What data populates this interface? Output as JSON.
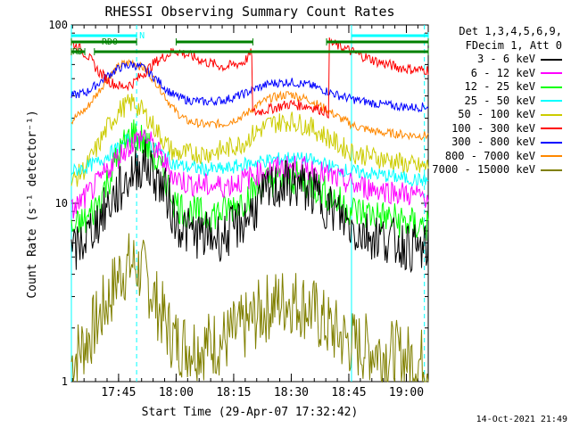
{
  "chart_data": {
    "type": "line",
    "title": "RHESSI Observing Summary Count Rates",
    "xlabel": "Start Time (29-Apr-07 17:32:42)",
    "ylabel": "Count Rate (s⁻¹ detector⁻¹)",
    "yscale": "log",
    "ylim": [
      1,
      100
    ],
    "xlim_minutes": [
      0,
      93
    ],
    "y_tick_labels": [
      "1",
      "10",
      "100"
    ],
    "x_tick_labels": [
      "17:45",
      "18:00",
      "18:15",
      "18:30",
      "18:45",
      "19:00"
    ],
    "x_tick_minutes": [
      12.3,
      27.3,
      42.3,
      57.3,
      72.3,
      87.3
    ],
    "legend_header": [
      "Det 1,3,4,5,6,9,",
      "FDecim 1, Att 0"
    ],
    "series": [
      {
        "name": "3 - 6 keV",
        "color": "#000000",
        "x": [
          0,
          4,
          7,
          10,
          13,
          16,
          19,
          22,
          25,
          27,
          30,
          35,
          40,
          45,
          48,
          52,
          57,
          62,
          66,
          70,
          74,
          80,
          85,
          90,
          93
        ],
        "values": [
          5,
          6.5,
          8,
          10,
          12,
          15,
          17,
          14,
          11,
          8,
          7,
          6.5,
          6.5,
          8,
          9.5,
          12,
          13,
          12,
          10,
          8.5,
          7,
          6.5,
          6,
          5.5,
          5.5
        ]
      },
      {
        "name": "6 - 12 keV",
        "color": "#ff00ff",
        "x": [
          0,
          4,
          7,
          10,
          13,
          16,
          19,
          22,
          25,
          27,
          30,
          35,
          40,
          45,
          48,
          52,
          57,
          62,
          66,
          70,
          74,
          80,
          85,
          90,
          93
        ],
        "values": [
          9,
          11,
          13,
          16,
          19,
          22,
          24,
          20,
          16,
          14,
          13,
          12.5,
          12.5,
          13.5,
          14.5,
          15.5,
          16,
          15.5,
          14.5,
          13.5,
          12.5,
          12,
          11.5,
          11,
          11
        ]
      },
      {
        "name": "12 - 25 keV",
        "color": "#00ff00",
        "x": [
          0,
          4,
          7,
          10,
          13,
          16,
          19,
          22,
          25,
          27,
          30,
          35,
          40,
          45,
          48,
          52,
          57,
          62,
          66,
          70,
          74,
          80,
          85,
          90,
          93
        ],
        "values": [
          7,
          8,
          10,
          14,
          20,
          25,
          22,
          17,
          13,
          10,
          9,
          8.5,
          9,
          10.5,
          12,
          13.5,
          14,
          13,
          11.5,
          10,
          9,
          8.5,
          8,
          7.5,
          7.5
        ]
      },
      {
        "name": "25 - 50 keV",
        "color": "#00ffff",
        "x": [
          0,
          4,
          7,
          10,
          13,
          16,
          19,
          22,
          25,
          27,
          30,
          35,
          40,
          45,
          48,
          52,
          57,
          62,
          66,
          70,
          74,
          80,
          85,
          90,
          93
        ],
        "values": [
          15,
          16,
          17,
          19,
          21,
          24,
          23,
          20,
          18,
          16.5,
          16,
          15.5,
          15.5,
          16.5,
          17,
          17.5,
          18,
          17.5,
          16.5,
          15.5,
          15,
          14.5,
          14,
          13.5,
          13.5
        ]
      },
      {
        "name": "50 - 100 keV",
        "color": "#cccc00",
        "x": [
          0,
          4,
          7,
          10,
          13,
          16,
          19,
          22,
          25,
          27,
          30,
          35,
          40,
          45,
          48,
          52,
          57,
          62,
          66,
          70,
          74,
          80,
          85,
          90,
          93
        ],
        "values": [
          13,
          16,
          21,
          28,
          34,
          37,
          32,
          26,
          21,
          19,
          19,
          19,
          20,
          22,
          25,
          28,
          29,
          27,
          24,
          21,
          19,
          18,
          17,
          16,
          16
        ]
      },
      {
        "name": "100 - 300 keV",
        "color": "#ff0000",
        "x": [
          0,
          4,
          7,
          10,
          13,
          16,
          19,
          22,
          27,
          27.1,
          35,
          40,
          45,
          47,
          47.1,
          52,
          57,
          62,
          66,
          67,
          67.1,
          75,
          80,
          85,
          90,
          93
        ],
        "values": [
          80,
          68,
          55,
          48,
          45,
          47,
          54,
          62,
          72,
          72,
          62,
          58,
          62,
          70,
          32,
          34,
          36,
          35,
          33,
          32,
          80,
          68,
          62,
          58,
          56,
          56
        ]
      },
      {
        "name": "300 - 800 keV",
        "color": "#0000ff",
        "x": [
          0,
          4,
          7,
          10,
          13,
          16,
          19,
          22,
          25,
          27,
          30,
          35,
          40,
          45,
          48,
          52,
          57,
          62,
          66,
          70,
          74,
          80,
          85,
          90,
          93
        ],
        "values": [
          40,
          42,
          47,
          53,
          58,
          60,
          57,
          50,
          43,
          40,
          38,
          37,
          38,
          41,
          44,
          47,
          48,
          46,
          43,
          40,
          38,
          36,
          35,
          34.5,
          35
        ]
      },
      {
        "name": "800 - 7000 keV",
        "color": "#ff8800",
        "x": [
          0,
          4,
          7,
          10,
          13,
          16,
          19,
          22,
          25,
          27,
          30,
          35,
          40,
          45,
          48,
          52,
          57,
          62,
          66,
          70,
          74,
          80,
          85,
          90,
          93
        ],
        "values": [
          29,
          34,
          42,
          52,
          60,
          62,
          57,
          48,
          38,
          33,
          29,
          27.5,
          28,
          31,
          35,
          39,
          41,
          38,
          34,
          30,
          27,
          25,
          24.5,
          24,
          24
        ]
      },
      {
        "name": "7000 - 15000 keV",
        "color": "#808000",
        "x": [
          0,
          4,
          7,
          10,
          13,
          16,
          19,
          22,
          25,
          27,
          30,
          35,
          40,
          45,
          48,
          52,
          57,
          62,
          66,
          70,
          74,
          80,
          85,
          90,
          93
        ],
        "values": [
          1.3,
          1.7,
          2.2,
          3,
          4.2,
          4.6,
          4,
          2.8,
          2,
          1.7,
          1.6,
          1.6,
          1.7,
          2,
          2.3,
          2.7,
          2.9,
          2.6,
          2.1,
          1.8,
          1.6,
          1.5,
          1.4,
          1.3,
          1.3
        ]
      }
    ],
    "annotation_bars": [
      {
        "label": "N",
        "color": "#00ffff",
        "row": 1,
        "segments": [
          [
            0,
            17
          ],
          [
            73,
            93
          ]
        ]
      },
      {
        "label": "RD0",
        "color": "#008000",
        "row": 2,
        "segments": [
          [
            0,
            17
          ],
          [
            27.3,
            47.3
          ],
          [
            66.5,
            93
          ]
        ]
      },
      {
        "label": "RD",
        "color": "#008000",
        "row": 3,
        "segments": [
          [
            0,
            3.5
          ],
          [
            6,
            93
          ]
        ]
      }
    ],
    "vertical_markers": [
      {
        "minute": 0,
        "style": "solid",
        "color": "#00ffff"
      },
      {
        "minute": 17,
        "style": "dashed",
        "color": "#00ffff"
      },
      {
        "minute": 73,
        "style": "solid",
        "color": "#00ffff"
      },
      {
        "minute": 92,
        "style": "dashed",
        "color": "#00ffff"
      }
    ]
  },
  "timestamp": "14-Oct-2021 21:49"
}
